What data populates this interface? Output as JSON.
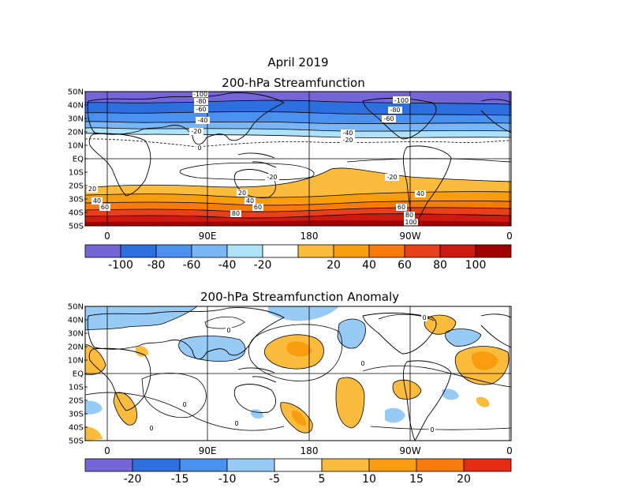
{
  "figure": {
    "title_line1": "April 2019",
    "panel1_title": "200-hPa Streamfunction",
    "panel2_title": "200-hPa Streamfunction Anomaly"
  },
  "lat_labels": [
    "50N",
    "40N",
    "30N",
    "20N",
    "10N",
    "EQ",
    "10S",
    "20S",
    "30S",
    "40S",
    "50S"
  ],
  "lon_labels": [
    "0",
    "90E",
    "180",
    "90W",
    "0"
  ],
  "panel1_colorbar": {
    "colors": [
      "#7466d6",
      "#2e6fe0",
      "#4a90ee",
      "#7ab6f6",
      "#aee2fa",
      "#ffffff",
      "#fbbb3c",
      "#f89c10",
      "#f77a0a",
      "#e8401a",
      "#cc1a10",
      "#a00000"
    ],
    "labels": [
      "-100",
      "-80",
      "-60",
      "-40",
      "-20",
      "20",
      "40",
      "60",
      "80",
      "100"
    ]
  },
  "panel2_colorbar": {
    "colors": [
      "#7466d6",
      "#2e6fe0",
      "#4a90ee",
      "#98caf6",
      "#ffffff",
      "#fbbb3c",
      "#f89c10",
      "#f77a0a",
      "#e62a14"
    ],
    "labels": [
      "-20",
      "-15",
      "-10",
      "-5",
      "5",
      "10",
      "15",
      "20"
    ]
  },
  "panel1_contour_labels": [
    "-100",
    "-80",
    "-60",
    "-40",
    "-20",
    "0",
    "-100",
    "-80",
    "-60",
    "-40",
    "-20",
    "-20",
    "-20",
    "20",
    "40",
    "60",
    "20",
    "40",
    "60",
    "80",
    "60",
    "40",
    "80",
    "100"
  ],
  "panel2_contour_labels": [
    "0",
    "0",
    "0",
    "0",
    "0",
    "0",
    "0"
  ]
}
